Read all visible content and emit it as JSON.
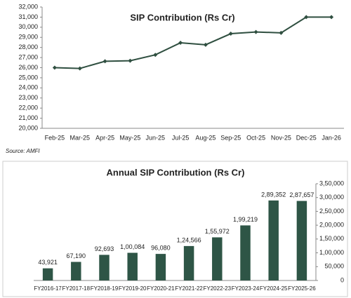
{
  "chart_data": [
    {
      "type": "line",
      "title": "SIP Contribution (Rs Cr)",
      "source": "Source: AMFI",
      "categories": [
        "Feb-25",
        "Mar-25",
        "Apr-25",
        "May-25",
        "Jun-25",
        "Jul-25",
        "Aug-25",
        "Sep-25",
        "Oct-25",
        "Nov-25",
        "Dec-25",
        "Jan-26"
      ],
      "values": [
        25999,
        25926,
        26632,
        26688,
        27269,
        28464,
        28265,
        29361,
        29529,
        29445,
        31002,
        31000
      ],
      "color": "#2f4f40",
      "ylim": [
        20000,
        32000
      ],
      "yticks": [
        {
          "value": 20000,
          "label": "20,000"
        },
        {
          "value": 21000,
          "label": "21,000"
        },
        {
          "value": 22000,
          "label": "22,000"
        },
        {
          "value": 23000,
          "label": "23,000"
        },
        {
          "value": 24000,
          "label": "24,000"
        },
        {
          "value": 25000,
          "label": "25,000"
        },
        {
          "value": 26000,
          "label": "26,000"
        },
        {
          "value": 27000,
          "label": "27,000"
        },
        {
          "value": 28000,
          "label": "28,000"
        },
        {
          "value": 29000,
          "label": "29,000"
        },
        {
          "value": 30000,
          "label": "30,000"
        },
        {
          "value": 31000,
          "label": "31,000"
        },
        {
          "value": 32000,
          "label": "32,000"
        }
      ],
      "y_axis_side": "left"
    },
    {
      "type": "bar",
      "title": "Annual SIP Contribution (Rs Cr)",
      "categories": [
        "FY2016-17",
        "FY2017-18",
        "FY2018-19",
        "FY2019-20",
        "FY2020-21",
        "FY2021-22",
        "FY2022-23",
        "FY2023-24",
        "FY2024-25",
        "FY2025-26"
      ],
      "values": [
        43921,
        67190,
        92693,
        100084,
        96080,
        124566,
        155972,
        199219,
        289352,
        287657
      ],
      "value_labels": [
        "43,921",
        "67,190",
        "92,693",
        "1,00,084",
        "96,080",
        "1,24,566",
        "1,55,972",
        "1,99,219",
        "2,89,352",
        "2,87,657"
      ],
      "color": "#2e5546",
      "ylim": [
        0,
        350000
      ],
      "yticks": [
        0,
        {
          "value": 50000,
          "label": "50,000"
        },
        {
          "value": 100000,
          "label": "1,00,000"
        },
        {
          "value": 150000,
          "label": "1,50,000"
        },
        {
          "value": 200000,
          "label": "2,00,000"
        },
        {
          "value": 250000,
          "label": "2,50,000"
        },
        {
          "value": 300000,
          "label": "3,00,000"
        },
        {
          "value": 350000,
          "label": "3,50,000"
        }
      ],
      "y_axis_side": "right"
    }
  ]
}
